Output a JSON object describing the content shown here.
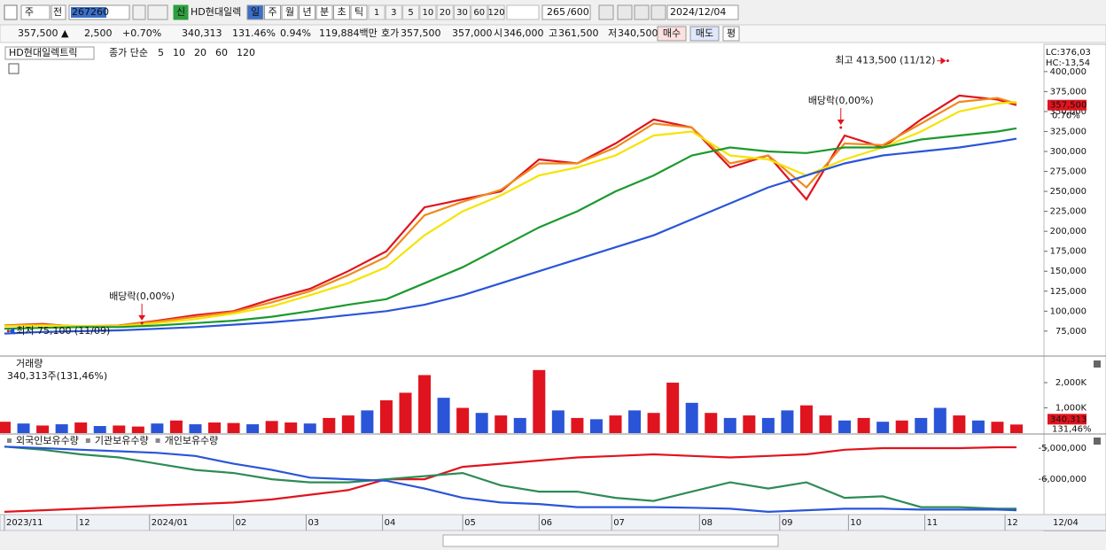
{
  "toolbar": {
    "market": "주",
    "prev": "전",
    "code": "267260",
    "badge": "신",
    "name": "HD현대일렉",
    "periods": [
      "일",
      "주",
      "월",
      "년",
      "분",
      "초",
      "틱"
    ],
    "intervals": [
      "1",
      "3",
      "5",
      "10",
      "20",
      "30",
      "60",
      "120"
    ],
    "count": "265",
    "max": "/600",
    "date": "2024/12/04"
  },
  "quote": {
    "price": "357,500 ▲",
    "change": "2,500",
    "change_pct": "+0.70%",
    "volume": "340,313",
    "volume_pct": "131.46%",
    "turnover": "0.94%",
    "amount": "119,884백만",
    "ask_label": "호가",
    "ask": "357,500",
    "bid": "357,000",
    "open_label": "시",
    "open": "346,000",
    "high_label": "고",
    "high": "361,500",
    "low_label": "저",
    "low": "340,500",
    "buy": "매수",
    "sell": "매도",
    "avg": "평"
  },
  "x_axis": {
    "xlim": [
      0,
      265
    ],
    "xticks": [
      {
        "value": 0,
        "label": "2023/11"
      },
      {
        "value": 19,
        "label": "12"
      },
      {
        "value": 38,
        "label": "2024/01"
      },
      {
        "value": 60,
        "label": "02"
      },
      {
        "value": 79,
        "label": "03"
      },
      {
        "value": 99,
        "label": "04"
      },
      {
        "value": 120,
        "label": "05"
      },
      {
        "value": 140,
        "label": "06"
      },
      {
        "value": 159,
        "label": "07"
      },
      {
        "value": 182,
        "label": "08"
      },
      {
        "value": 203,
        "label": "09"
      },
      {
        "value": 221,
        "label": "10"
      },
      {
        "value": 241,
        "label": "11"
      },
      {
        "value": 262,
        "label": "12"
      }
    ],
    "next_label": "12/04"
  },
  "chart_data": [
    {
      "type": "line",
      "title": "HD현대일렉트릭",
      "subtitle": "종가 단순",
      "x": [
        0,
        10,
        20,
        30,
        40,
        50,
        60,
        70,
        80,
        90,
        100,
        110,
        120,
        130,
        140,
        150,
        160,
        170,
        180,
        190,
        200,
        210,
        220,
        230,
        240,
        250,
        260,
        265
      ],
      "series": [
        {
          "name": "5",
          "color": "#e0141e",
          "values": [
            82000,
            84000,
            80000,
            82000,
            88000,
            95000,
            100000,
            115000,
            128000,
            150000,
            175000,
            230000,
            240000,
            250000,
            290000,
            285000,
            310000,
            340000,
            330000,
            280000,
            295000,
            240000,
            320000,
            305000,
            340000,
            370000,
            365000,
            358000
          ]
        },
        {
          "name": "10",
          "color": "#f08a1c",
          "values": [
            82000,
            83000,
            81000,
            82000,
            87000,
            93000,
            99000,
            111000,
            125000,
            145000,
            168000,
            220000,
            237000,
            252000,
            285000,
            285000,
            305000,
            335000,
            330000,
            285000,
            295000,
            255000,
            310000,
            308000,
            335000,
            362000,
            367000,
            360000
          ]
        },
        {
          "name": "20",
          "color": "#f5e400",
          "values": [
            81000,
            82000,
            81000,
            81000,
            85000,
            90000,
            97000,
            106000,
            120000,
            135000,
            155000,
            195000,
            225000,
            245000,
            270000,
            280000,
            295000,
            320000,
            325000,
            295000,
            290000,
            270000,
            290000,
            305000,
            325000,
            350000,
            360000,
            362000
          ]
        },
        {
          "name": "60",
          "color": "#1a9a2e",
          "values": [
            78000,
            79000,
            80000,
            80000,
            82000,
            85000,
            88000,
            93000,
            100000,
            108000,
            115000,
            135000,
            155000,
            180000,
            205000,
            225000,
            250000,
            270000,
            295000,
            305000,
            300000,
            298000,
            305000,
            305000,
            315000,
            320000,
            325000,
            329000
          ]
        },
        {
          "name": "120",
          "color": "#2a55d8",
          "values": [
            72000,
            74000,
            75000,
            76000,
            78000,
            80000,
            83000,
            86000,
            90000,
            95000,
            100000,
            108000,
            120000,
            135000,
            150000,
            165000,
            180000,
            195000,
            215000,
            235000,
            255000,
            270000,
            285000,
            295000,
            300000,
            305000,
            312000,
            316000
          ]
        }
      ],
      "ylim": [
        46000,
        432000
      ],
      "yticks": [
        {
          "value": 75000,
          "label": "75,000"
        },
        {
          "value": 100000,
          "label": "100,000"
        },
        {
          "value": 125000,
          "label": "125,000"
        },
        {
          "value": 150000,
          "label": "150,000"
        },
        {
          "value": 175000,
          "label": "175,000"
        },
        {
          "value": 200000,
          "label": "200,000"
        },
        {
          "value": 225000,
          "label": "225,000"
        },
        {
          "value": 250000,
          "label": "250,000"
        },
        {
          "value": 275000,
          "label": "275,000"
        },
        {
          "value": 300000,
          "label": "300,000"
        },
        {
          "value": 325000,
          "label": "325,000"
        },
        {
          "value": 350000,
          "label": "350,000"
        },
        {
          "value": 375000,
          "label": "375,000"
        },
        {
          "value": 400000,
          "label": "400,000"
        }
      ],
      "annotations": [
        {
          "text": "최고 413,500 (11/12)",
          "x": 247,
          "y": 413500,
          "side": "left"
        },
        {
          "text": "최저 75,100 (11/09)",
          "x": 1,
          "y": 75100,
          "side": "right"
        },
        {
          "text": "배당락(0,00%)",
          "x": 36,
          "y": 85000,
          "side": "above"
        },
        {
          "text": "배당락(0,00%)",
          "x": 219,
          "y": 330000,
          "side": "above"
        }
      ],
      "lc": "LC:376,03",
      "hc": "HC:-13,54",
      "last_price": "357,500",
      "last_change": "0.70%"
    },
    {
      "type": "bar",
      "title": "거래량",
      "subtitle": "340,313주(131,46%)",
      "x": [
        0,
        5,
        10,
        15,
        20,
        25,
        30,
        35,
        40,
        45,
        50,
        55,
        60,
        65,
        70,
        75,
        80,
        85,
        90,
        95,
        100,
        105,
        110,
        115,
        120,
        125,
        130,
        135,
        140,
        145,
        150,
        155,
        160,
        165,
        170,
        175,
        180,
        185,
        190,
        195,
        200,
        205,
        210,
        215,
        220,
        225,
        230,
        235,
        240,
        245,
        250,
        255,
        260,
        265
      ],
      "values": [
        450000,
        380000,
        300000,
        350000,
        420000,
        280000,
        300000,
        260000,
        380000,
        500000,
        350000,
        420000,
        400000,
        350000,
        480000,
        420000,
        380000,
        600000,
        700000,
        900000,
        1300000,
        1600000,
        2300000,
        1400000,
        1000000,
        800000,
        700000,
        600000,
        2500000,
        900000,
        600000,
        550000,
        700000,
        900000,
        800000,
        2000000,
        1200000,
        800000,
        600000,
        700000,
        600000,
        900000,
        1100000,
        700000,
        500000,
        600000,
        450000,
        500000,
        600000,
        1000000,
        700000,
        500000,
        450000,
        340313
      ],
      "colors": [
        "#e0141e",
        "#2a55d8",
        "#e0141e",
        "#2a55d8",
        "#e0141e",
        "#2a55d8",
        "#e0141e",
        "#e0141e",
        "#2a55d8",
        "#e0141e",
        "#2a55d8",
        "#e0141e",
        "#e0141e",
        "#2a55d8",
        "#e0141e",
        "#e0141e",
        "#2a55d8",
        "#e0141e",
        "#e0141e",
        "#2a55d8",
        "#e0141e",
        "#e0141e",
        "#e0141e",
        "#2a55d8",
        "#e0141e",
        "#2a55d8",
        "#e0141e",
        "#2a55d8",
        "#e0141e",
        "#2a55d8",
        "#e0141e",
        "#2a55d8",
        "#e0141e",
        "#2a55d8",
        "#e0141e",
        "#e0141e",
        "#2a55d8",
        "#e0141e",
        "#2a55d8",
        "#e0141e",
        "#2a55d8",
        "#2a55d8",
        "#e0141e",
        "#e0141e",
        "#2a55d8",
        "#e0141e",
        "#2a55d8",
        "#e0141e",
        "#2a55d8",
        "#2a55d8",
        "#e0141e",
        "#2a55d8",
        "#e0141e",
        "#e0141e"
      ],
      "ylim": [
        0,
        2950000
      ],
      "yticks": [
        {
          "value": 1000000,
          "label": "1,000K"
        },
        {
          "value": 2000000,
          "label": "2,000K"
        }
      ],
      "last_label": "340,313",
      "last_pct": "131,46%"
    },
    {
      "type": "line",
      "x": [
        0,
        10,
        20,
        30,
        40,
        50,
        60,
        70,
        80,
        90,
        100,
        110,
        120,
        130,
        140,
        150,
        160,
        170,
        180,
        190,
        200,
        210,
        220,
        230,
        240,
        250,
        260,
        265
      ],
      "series": [
        {
          "name": "외국인보유수량",
          "color": "#e0141e",
          "values": [
            -7050000,
            -7000000,
            -6950000,
            -6900000,
            -6850000,
            -6800000,
            -6750000,
            -6650000,
            -6500000,
            -6350000,
            -6000000,
            -6000000,
            -5600000,
            -5500000,
            -5400000,
            -5300000,
            -5250000,
            -5200000,
            -5250000,
            -5300000,
            -5250000,
            -5200000,
            -5050000,
            -5000000,
            -5000000,
            -5000000,
            -4970000,
            -4970000
          ]
        },
        {
          "name": "기관보유수량",
          "color": "#2e8b57",
          "values": [
            -4950000,
            -5050000,
            -5200000,
            -5300000,
            -5500000,
            -5700000,
            -5800000,
            -6000000,
            -6100000,
            -6100000,
            -6000000,
            -5900000,
            -5800000,
            -6200000,
            -6400000,
            -6400000,
            -6600000,
            -6700000,
            -6400000,
            -6100000,
            -6300000,
            -6100000,
            -6600000,
            -6550000,
            -6900000,
            -6900000,
            -6950000,
            -6950000
          ]
        },
        {
          "name": "개인보유수량",
          "color": "#2a55d8",
          "values": [
            -4950000,
            -5000000,
            -5050000,
            -5100000,
            -5150000,
            -5250000,
            -5500000,
            -5700000,
            -5950000,
            -6000000,
            -6050000,
            -6300000,
            -6600000,
            -6750000,
            -6800000,
            -6900000,
            -6900000,
            -6900000,
            -6920000,
            -6950000,
            -7050000,
            -7000000,
            -6950000,
            -6950000,
            -6980000,
            -6980000,
            -6980000,
            -7000000
          ]
        }
      ],
      "ylim": [
        -7110000,
        -4600000
      ],
      "yticks": [
        {
          "value": -5000000,
          "label": "-5,000,000"
        },
        {
          "value": -6000000,
          "label": "-6,000,000"
        }
      ]
    }
  ]
}
